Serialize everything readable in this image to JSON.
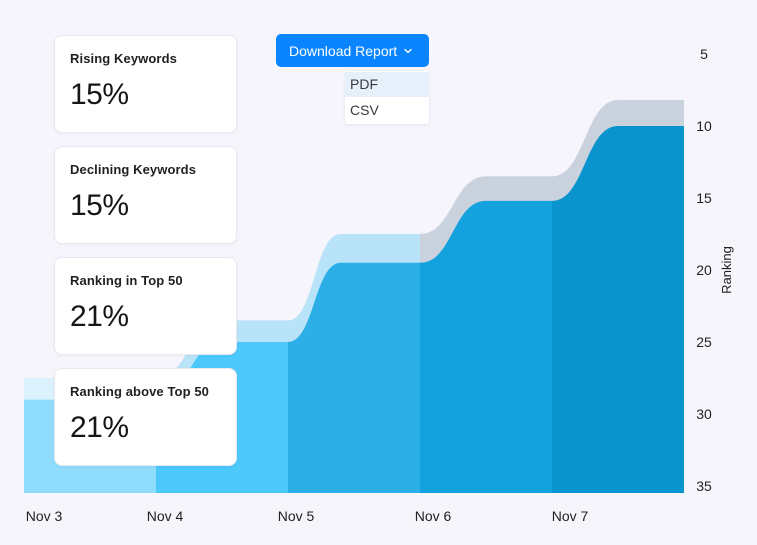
{
  "download": {
    "label": "Download Report",
    "options": [
      "PDF",
      "CSV"
    ]
  },
  "cards": [
    {
      "label": "Rising Keywords",
      "value": "15%"
    },
    {
      "label": "Declining Keywords",
      "value": "15%"
    },
    {
      "label": "Ranking in Top 50",
      "value": "21%"
    },
    {
      "label": "Ranking above Top 50",
      "value": "21%"
    }
  ],
  "colors": {
    "band_light": "#c9d2dd",
    "segments": [
      "#8fdcfd",
      "#4cc8fb",
      "#2cafe6",
      "#13a2de",
      "#0a94cd",
      "#0891cb"
    ]
  },
  "chart_data": {
    "type": "area",
    "title": "",
    "xlabel": "",
    "ylabel": "Ranking",
    "y_inverted": true,
    "ylim": [
      3,
      35
    ],
    "y_ticks": [
      5,
      10,
      15,
      20,
      25,
      30,
      35
    ],
    "x_ticks": [
      "Nov 3",
      "Nov 4",
      "Nov 5",
      "Nov 6",
      "Nov 7"
    ],
    "x": [
      3,
      3.5,
      4,
      4.5,
      5,
      5.4,
      6,
      6.5,
      7,
      7.5,
      8
    ],
    "series": [
      {
        "values": [
          27.5,
          27.5,
          27.5,
          23.5,
          23.5,
          17.5,
          17.5,
          13.5,
          13.5,
          8.2,
          8.2
        ]
      },
      {
        "values": [
          29,
          29,
          29,
          25,
          25,
          19.5,
          19.5,
          15.2,
          15.2,
          10,
          10
        ]
      }
    ]
  }
}
